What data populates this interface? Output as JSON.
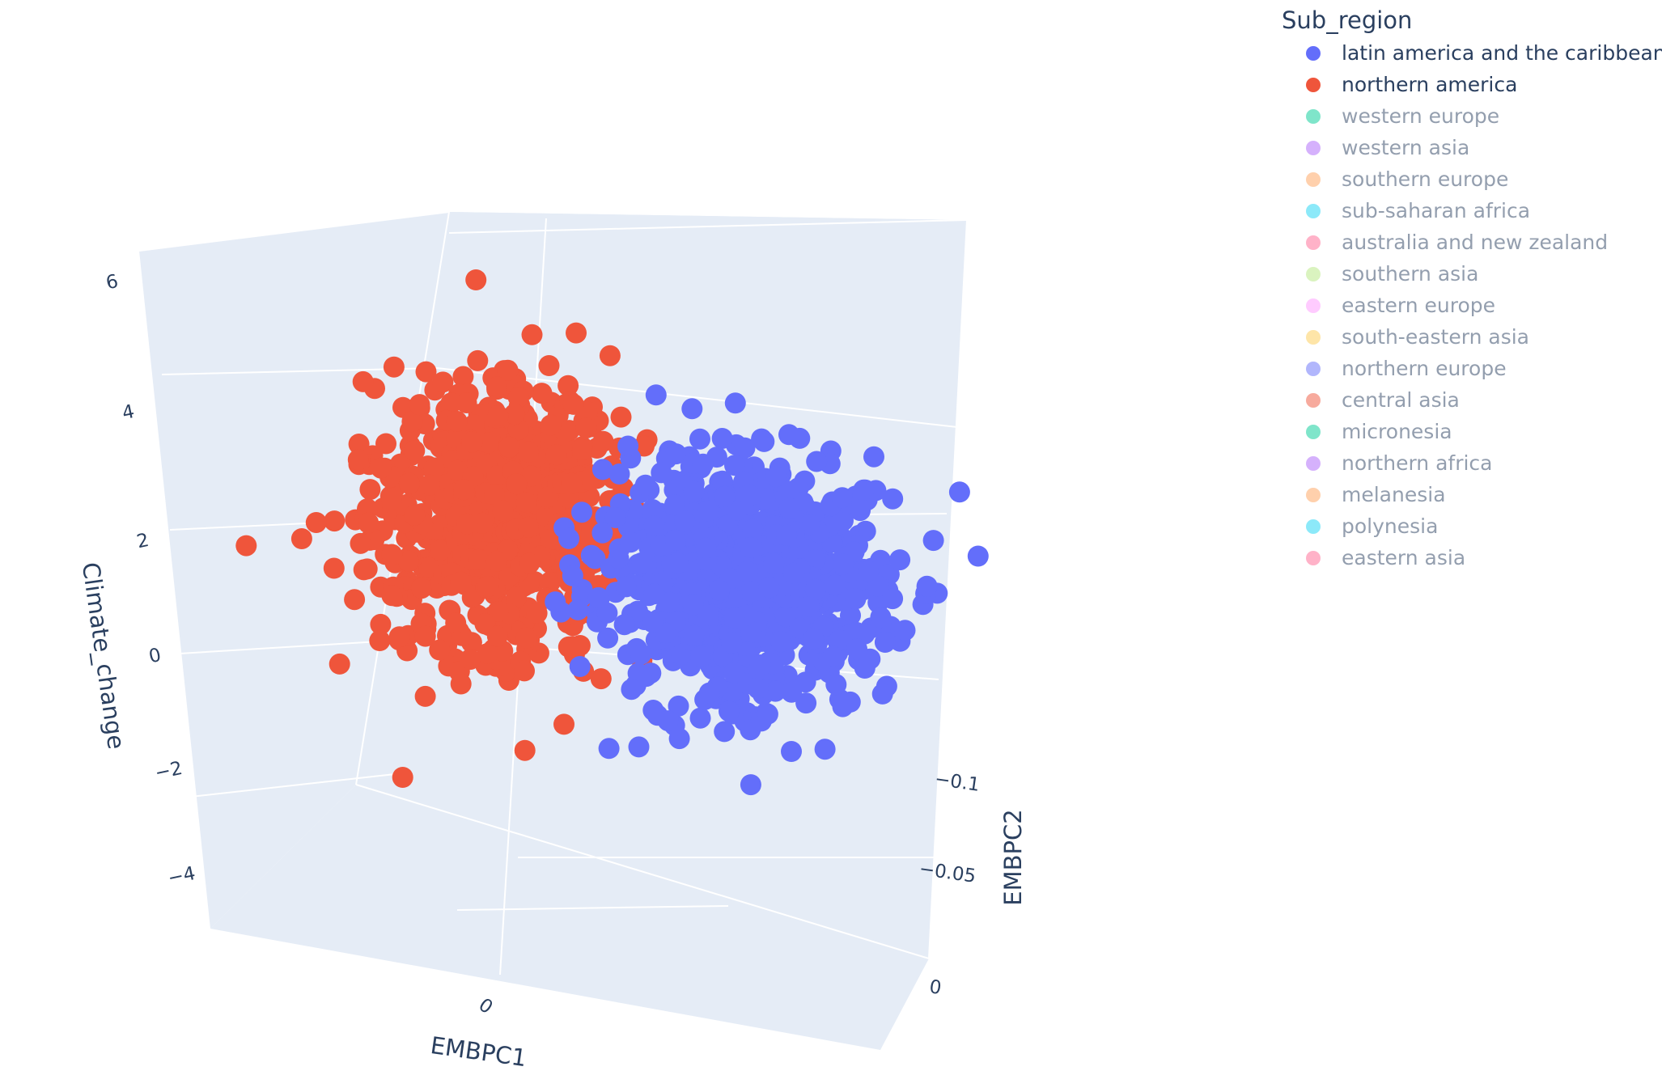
{
  "chart_data": {
    "type": "scatter",
    "dimensions": "3d",
    "axes": {
      "x": {
        "title": "EMBPC1",
        "ticks": [
          "0"
        ]
      },
      "y": {
        "title": "EMBPC2",
        "ticks": [
          "−0.1",
          "−0.05",
          "0"
        ]
      },
      "z": {
        "title": "Climate_change",
        "ticks": [
          "6",
          "4",
          "2",
          "0",
          "−2",
          "−4"
        ],
        "range": [
          -4.5,
          6.5
        ]
      }
    },
    "grid": true,
    "legend": {
      "title": "Sub_region",
      "placement": "top-right",
      "items": [
        {
          "name": "latin america and the caribbean",
          "color": "#636efa",
          "visible": true
        },
        {
          "name": "northern america",
          "color": "#ef553b",
          "visible": true
        },
        {
          "name": "western europe",
          "color": "#00cc96",
          "visible": false
        },
        {
          "name": "western asia",
          "color": "#ab63fa",
          "visible": false
        },
        {
          "name": "southern europe",
          "color": "#ffa15a",
          "visible": false
        },
        {
          "name": "sub-saharan africa",
          "color": "#19d3f3",
          "visible": false
        },
        {
          "name": "australia and new zealand",
          "color": "#ff6692",
          "visible": false
        },
        {
          "name": "southern asia",
          "color": "#b6e880",
          "visible": false
        },
        {
          "name": "eastern europe",
          "color": "#ff97ff",
          "visible": false
        },
        {
          "name": "south-eastern asia",
          "color": "#fecb52",
          "visible": false
        },
        {
          "name": "northern europe",
          "color": "#636efa",
          "visible": false
        },
        {
          "name": "central asia",
          "color": "#ef553b",
          "visible": false
        },
        {
          "name": "micronesia",
          "color": "#00cc96",
          "visible": false
        },
        {
          "name": "northern africa",
          "color": "#ab63fa",
          "visible": false
        },
        {
          "name": "melanesia",
          "color": "#ffa15a",
          "visible": false
        },
        {
          "name": "polynesia",
          "color": "#19d3f3",
          "visible": false
        },
        {
          "name": "eastern asia",
          "color": "#ff6692",
          "visible": false
        }
      ]
    },
    "series": [
      {
        "name": "latin america and the caribbean",
        "color": "#636efa",
        "cluster_center_climate_change": 0.4,
        "cluster_spread_climate_change": 0.9,
        "approx_points": 900
      },
      {
        "name": "northern america",
        "color": "#ef553b",
        "cluster_center_climate_change": 1.8,
        "cluster_spread_climate_change": 1.1,
        "approx_points": 700
      }
    ]
  }
}
